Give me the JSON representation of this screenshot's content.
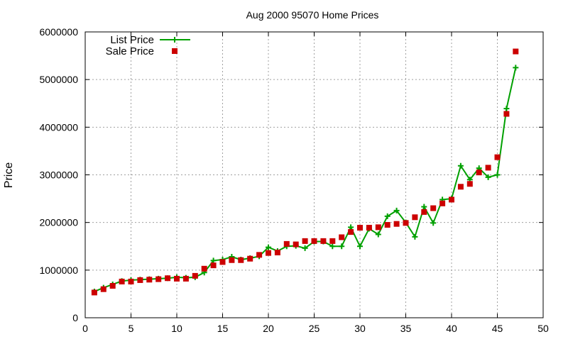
{
  "chart_data": {
    "type": "line",
    "title": "Aug 2000 95070 Home Prices",
    "xlabel": "",
    "ylabel": "Price",
    "xlim": [
      0,
      50
    ],
    "ylim": [
      0,
      6000000
    ],
    "x_ticks": [
      "0",
      "5",
      "10",
      "15",
      "20",
      "25",
      "30",
      "35",
      "40",
      "45",
      "50"
    ],
    "y_ticks": [
      "0",
      "1000000",
      "2000000",
      "3000000",
      "4000000",
      "5000000",
      "6000000"
    ],
    "grid": true,
    "legend_position": "top-left",
    "series": [
      {
        "name": "List Price",
        "style": "line-with-plus-markers",
        "color": "#00a000",
        "x": [
          1,
          2,
          3,
          4,
          5,
          6,
          7,
          8,
          9,
          10,
          11,
          12,
          13,
          14,
          15,
          16,
          17,
          18,
          19,
          20,
          21,
          22,
          23,
          24,
          25,
          26,
          27,
          28,
          29,
          30,
          31,
          32,
          33,
          34,
          35,
          36,
          37,
          38,
          39,
          40,
          41,
          42,
          43,
          44,
          45,
          46,
          47
        ],
        "values": [
          550000,
          630000,
          700000,
          770000,
          790000,
          800000,
          810000,
          820000,
          830000,
          850000,
          840000,
          850000,
          950000,
          1200000,
          1220000,
          1280000,
          1220000,
          1250000,
          1290000,
          1480000,
          1400000,
          1500000,
          1510000,
          1460000,
          1600000,
          1600000,
          1500000,
          1500000,
          1900000,
          1500000,
          1870000,
          1750000,
          2130000,
          2250000,
          2000000,
          1700000,
          2330000,
          1990000,
          2480000,
          2500000,
          3190000,
          2900000,
          3140000,
          2950000,
          3000000,
          4390000,
          5250000
        ]
      },
      {
        "name": "Sale Price",
        "style": "square-markers",
        "color": "#cc0000",
        "x": [
          1,
          2,
          3,
          4,
          5,
          6,
          7,
          8,
          9,
          10,
          11,
          12,
          13,
          14,
          15,
          16,
          17,
          18,
          19,
          20,
          21,
          22,
          23,
          24,
          25,
          26,
          27,
          28,
          29,
          30,
          31,
          32,
          33,
          34,
          35,
          36,
          37,
          38,
          39,
          40,
          41,
          42,
          43,
          44,
          45,
          46,
          47
        ],
        "values": [
          530000,
          600000,
          670000,
          760000,
          760000,
          790000,
          800000,
          810000,
          830000,
          820000,
          820000,
          880000,
          1030000,
          1100000,
          1170000,
          1210000,
          1210000,
          1240000,
          1320000,
          1360000,
          1370000,
          1550000,
          1540000,
          1610000,
          1610000,
          1610000,
          1610000,
          1690000,
          1800000,
          1890000,
          1890000,
          1900000,
          1950000,
          1970000,
          1990000,
          2110000,
          2220000,
          2300000,
          2400000,
          2480000,
          2750000,
          2810000,
          3050000,
          3150000,
          3370000,
          4280000,
          5590000
        ]
      }
    ]
  }
}
